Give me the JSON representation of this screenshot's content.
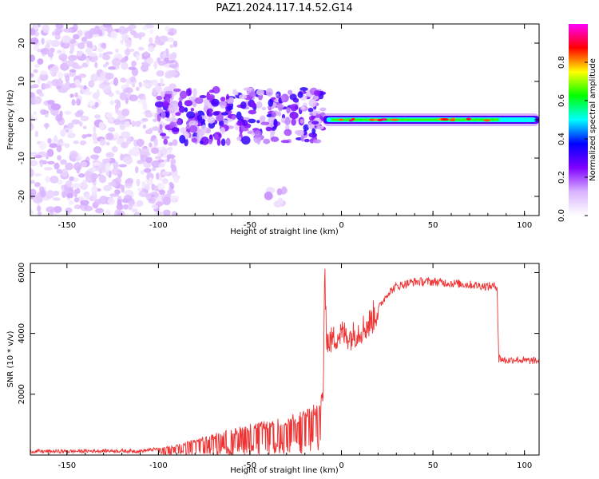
{
  "figure": {
    "title": "PAZ1.2024.117.14.52.G14"
  },
  "chart_data": [
    {
      "type": "heatmap",
      "xlabel": "Height of straight line (km)",
      "ylabel": "Frequency (Hz)",
      "xlim": [
        -170,
        108
      ],
      "ylim": [
        -25,
        25
      ],
      "xticks": [
        -150,
        -100,
        -50,
        0,
        50,
        100
      ],
      "yticks": [
        -20,
        -10,
        0,
        10,
        20
      ],
      "colorbar": {
        "label": "Normalized spectral amplitude",
        "range": [
          0,
          1
        ],
        "ticks": [
          0.0,
          0.2,
          0.4,
          0.6,
          0.8
        ],
        "tick_labels": [
          "0.0",
          "0.2",
          "0.4",
          "0.6",
          "0.8"
        ],
        "colormap": [
          "#ffffff",
          "#d9b3ff",
          "#8000ff",
          "#0000ff",
          "#00ffff",
          "#00ff00",
          "#ffff00",
          "#ff0000",
          "#ff00ff"
        ]
      },
      "features": [
        {
          "name": "scattered noise",
          "x_range": [
            -170,
            -90
          ],
          "y_range": [
            -25,
            25
          ],
          "amplitude": 0.1
        },
        {
          "name": "fragmented signal",
          "x_range": [
            -100,
            -10
          ],
          "y_range": [
            -6,
            8
          ],
          "amplitude": 0.25
        },
        {
          "name": "tail streak",
          "x_range": [
            -40,
            -30
          ],
          "y_range": [
            -23,
            -18
          ],
          "amplitude": 0.12
        },
        {
          "name": "steady carrier",
          "x_range": [
            -10,
            108
          ],
          "y_center": 0,
          "amplitude": 0.45
        }
      ]
    },
    {
      "type": "line",
      "xlabel": "Height of straight line (km)",
      "ylabel": "SNR (10 * v/v)",
      "xlim": [
        -170,
        108
      ],
      "ylim": [
        0,
        6300
      ],
      "xticks": [
        -150,
        -100,
        -50,
        0,
        50,
        100
      ],
      "yticks": [
        2000,
        4000,
        6000
      ],
      "series": [
        {
          "color": "#ee3333",
          "x": [
            -170,
            -150,
            -130,
            -110,
            -100,
            -90,
            -80,
            -70,
            -60,
            -50,
            -40,
            -30,
            -25,
            -20,
            -15,
            -12,
            -10,
            -9,
            -8,
            -7,
            -5,
            0,
            5,
            10,
            15,
            20,
            25,
            30,
            40,
            50,
            60,
            70,
            80,
            85,
            86,
            88,
            90,
            95,
            100,
            108
          ],
          "y": [
            120,
            120,
            140,
            130,
            200,
            300,
            450,
            600,
            750,
            900,
            1000,
            1100,
            1200,
            1300,
            1450,
            1600,
            2000,
            5900,
            3800,
            3700,
            3800,
            4000,
            3900,
            4100,
            4300,
            4800,
            5300,
            5550,
            5700,
            5700,
            5650,
            5600,
            5550,
            5550,
            3200,
            3150,
            3100,
            3150,
            3100,
            3100
          ]
        }
      ]
    }
  ]
}
